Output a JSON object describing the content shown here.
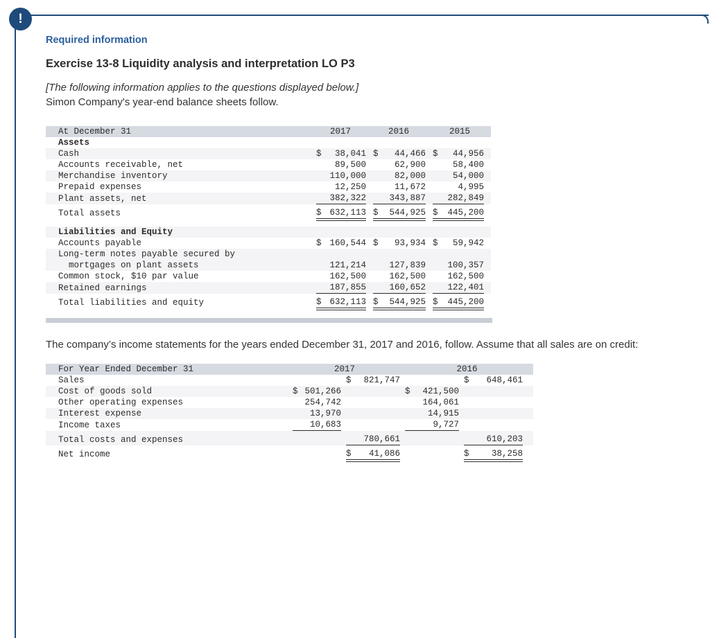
{
  "alert": {
    "glyph": "!"
  },
  "header": {
    "required_info": "Required information",
    "exercise_title": "Exercise 13-8 Liquidity analysis and interpretation LO P3",
    "applies_note": "[The following information applies to the questions displayed below.]",
    "intro": "Simon Company's year-end balance sheets follow."
  },
  "income_intro": "The company’s income statements for the years ended December 31, 2017 and 2016, follow. Assume that all sales are on credit:",
  "colors": {
    "accent_navy": "#1f4a7c",
    "heading_blue": "#2b5f9e",
    "table_header_bg": "#d6dae1",
    "row_stripe": "#f4f4f6",
    "table_footer_bar": "#c9cdd6"
  },
  "balance_sheet": {
    "header": {
      "label": "At December 31",
      "years": [
        "2017",
        "2016",
        "2015"
      ]
    },
    "rows": [
      {
        "label": "Assets",
        "section": true
      },
      {
        "label": "Cash",
        "dollar": true,
        "values": [
          "38,041",
          "44,466",
          "44,956"
        ],
        "stripe": true
      },
      {
        "label": "Accounts receivable, net",
        "values": [
          "89,500",
          "62,900",
          "58,400"
        ]
      },
      {
        "label": "Merchandise inventory",
        "values": [
          "110,000",
          "82,000",
          "54,000"
        ],
        "stripe": true
      },
      {
        "label": "Prepaid expenses",
        "values": [
          "12,250",
          "11,672",
          "4,995"
        ]
      },
      {
        "label": "Plant assets, net",
        "values": [
          "382,322",
          "343,887",
          "282,849"
        ],
        "stripe": true,
        "underline": true
      },
      {
        "label": "Total assets",
        "dollar": true,
        "values": [
          "632,113",
          "544,925",
          "445,200"
        ],
        "total": true,
        "gap": true
      },
      {
        "spacer": true
      },
      {
        "label": "Liabilities and Equity",
        "section": true,
        "stripe": true
      },
      {
        "label": "Accounts payable",
        "dollar": true,
        "values": [
          "160,544",
          "93,934",
          "59,942"
        ]
      },
      {
        "label": [
          "Long-term notes payable secured by",
          "mortgages on plant assets"
        ],
        "values": [
          "121,214",
          "127,839",
          "100,357"
        ],
        "stripe": true
      },
      {
        "label": "Common stock, $10 par value",
        "values": [
          "162,500",
          "162,500",
          "162,500"
        ]
      },
      {
        "label": "Retained earnings",
        "values": [
          "187,855",
          "160,652",
          "122,401"
        ],
        "stripe": true,
        "underline": true
      },
      {
        "label": "Total liabilities and equity",
        "dollar": true,
        "values": [
          "632,113",
          "544,925",
          "445,200"
        ],
        "total": true,
        "gap": true
      }
    ]
  },
  "income_statement": {
    "header": {
      "label": "For Year Ended December 31",
      "years": [
        "2017",
        "2016"
      ]
    },
    "rows": [
      {
        "label": "Sales",
        "col": "outer",
        "dollar": true,
        "values": [
          "821,747",
          "648,461"
        ]
      },
      {
        "label": "Cost of goods sold",
        "col": "inner",
        "dollar": true,
        "values": [
          "501,266",
          "421,500"
        ],
        "stripe": true
      },
      {
        "label": "Other operating expenses",
        "col": "inner",
        "values": [
          "254,742",
          "164,061"
        ]
      },
      {
        "label": "Interest expense",
        "col": "inner",
        "values": [
          "13,970",
          "14,915"
        ],
        "stripe": true
      },
      {
        "label": "Income taxes",
        "col": "inner",
        "values": [
          "10,683",
          "9,727"
        ],
        "underline": true
      },
      {
        "label": "Total costs and expenses",
        "col": "outer",
        "values": [
          "780,661",
          "610,203"
        ],
        "stripe": true,
        "underline": true,
        "gap": true
      },
      {
        "label": "Net income",
        "col": "outer",
        "dollar": true,
        "values": [
          "41,086",
          "38,258"
        ],
        "total": true,
        "gap": true
      }
    ]
  }
}
